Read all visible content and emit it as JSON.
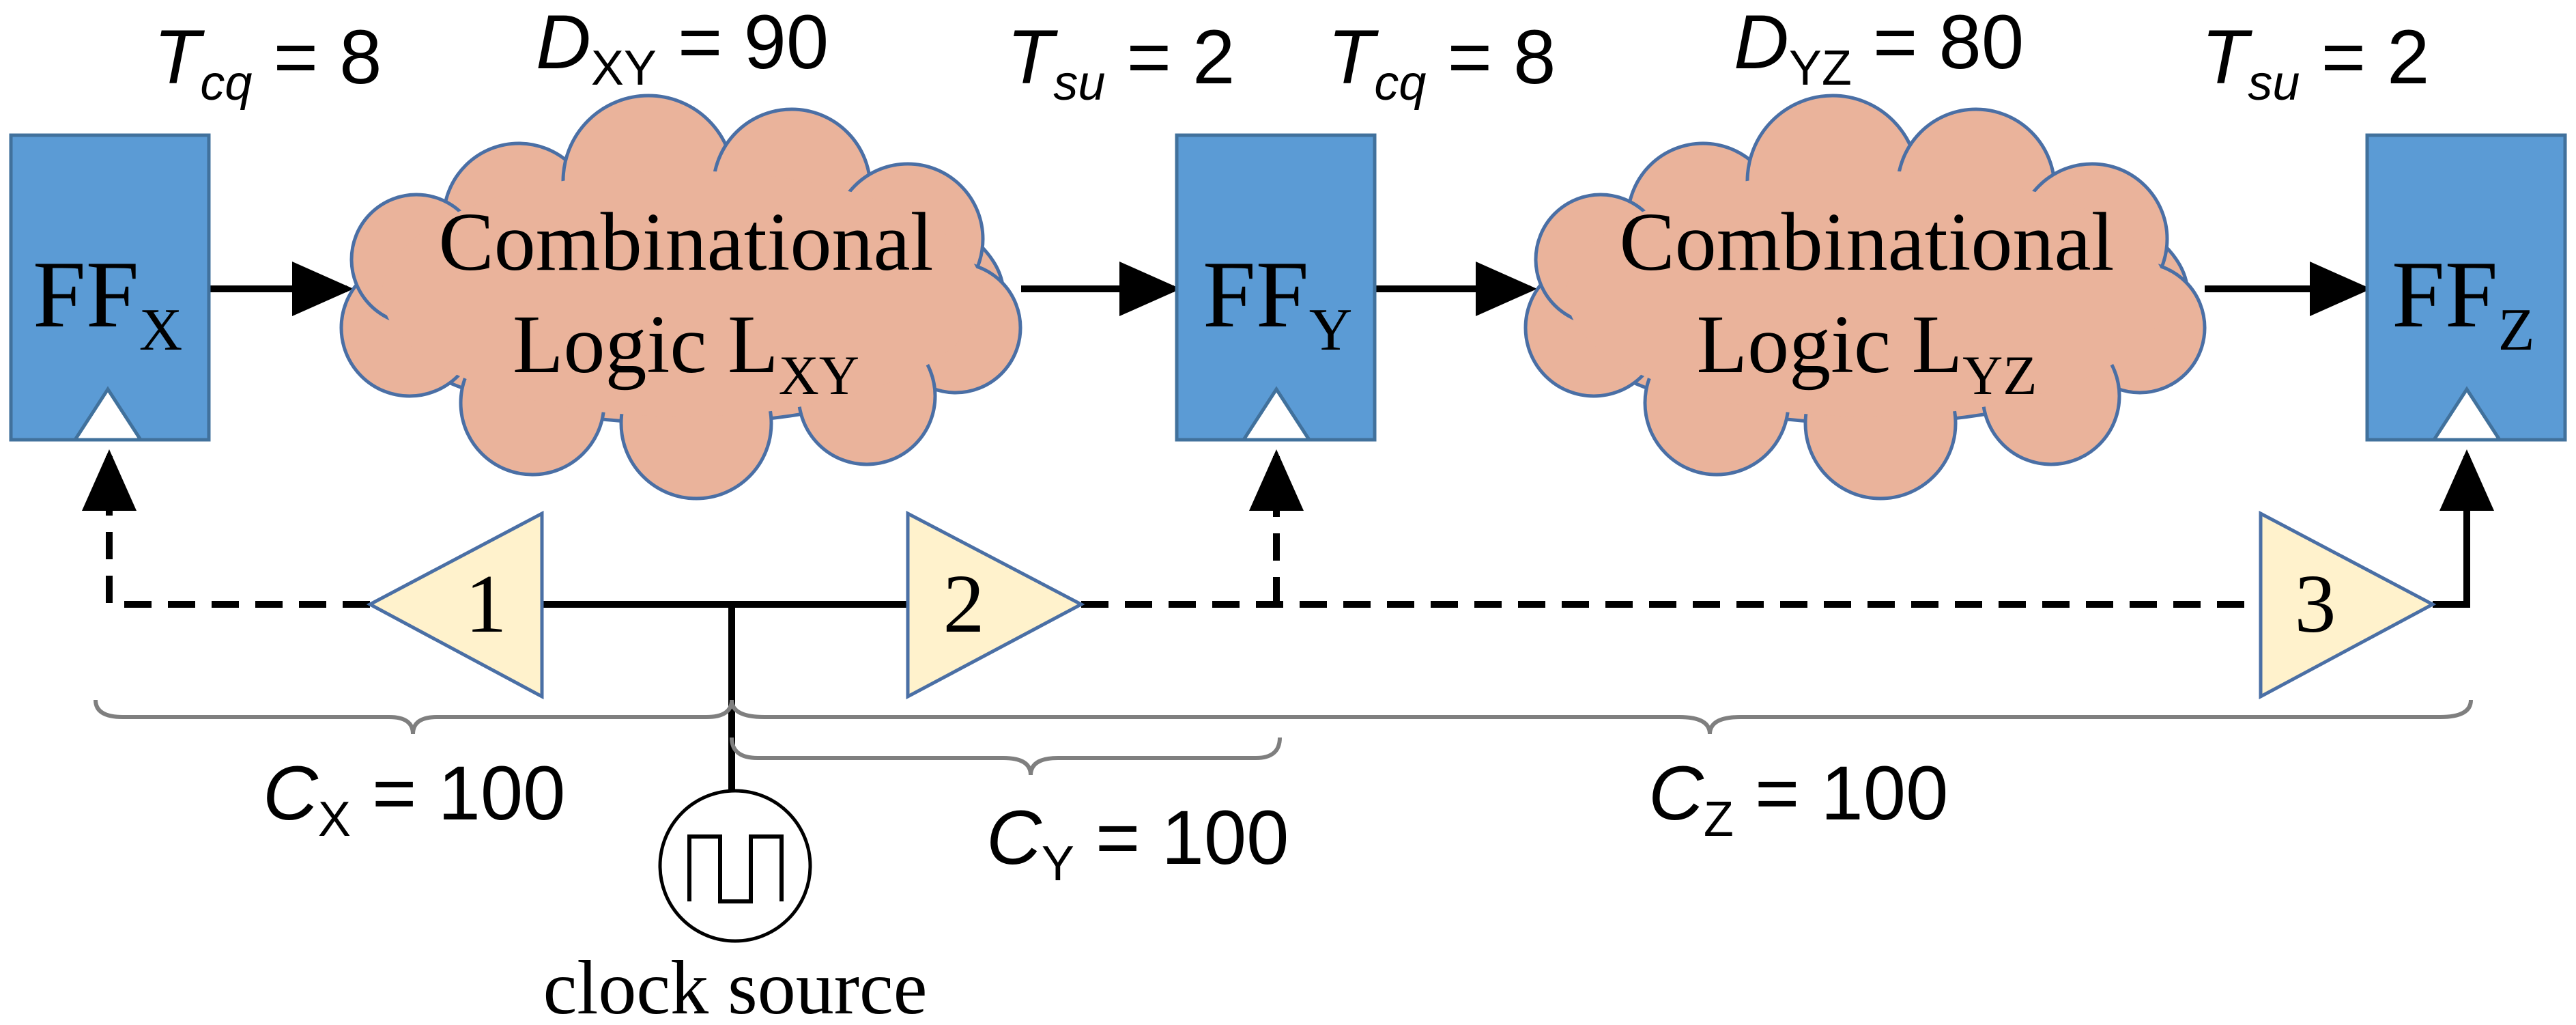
{
  "timing": {
    "tcq_x": {
      "sym": "T",
      "sub": "cq",
      "eq": " = 8"
    },
    "d_xy": {
      "sym": "D",
      "sub": "XY",
      "eq": " = 90"
    },
    "tsu_y": {
      "sym": "T",
      "sub": "su",
      "eq": " = 2"
    },
    "tcq_y": {
      "sym": "T",
      "sub": "cq",
      "eq": " = 8"
    },
    "d_yz": {
      "sym": "D",
      "sub": "YZ",
      "eq": " = 80"
    },
    "tsu_z": {
      "sym": "T",
      "sub": "su",
      "eq": " = 2"
    }
  },
  "flipflops": [
    {
      "base": "FF",
      "sub": "X"
    },
    {
      "base": "FF",
      "sub": "Y"
    },
    {
      "base": "FF",
      "sub": "Z"
    }
  ],
  "logic": [
    {
      "line1": "Combinational",
      "line2": "Logic L",
      "sub": "XY"
    },
    {
      "line1": "Combinational",
      "line2": "Logic L",
      "sub": "YZ"
    }
  ],
  "buffers": [
    "1",
    "2",
    "3"
  ],
  "clock_delays": {
    "cx": {
      "sym": "C",
      "sub": "X",
      "eq": " = 100"
    },
    "cy": {
      "sym": "C",
      "sub": "Y",
      "eq": " = 100"
    },
    "cz": {
      "sym": "C",
      "sub": "Z",
      "eq": " = 100"
    }
  },
  "clock_label": "clock source",
  "colors": {
    "flipflop_fill": "#5b9bd5",
    "flipflop_stroke": "#41719c",
    "cloud_fill": "#eab39b",
    "cloud_stroke": "#4a6fa5",
    "buffer_fill": "#fff2cc",
    "buffer_stroke": "#4a6fa5",
    "brace_stroke": "#7f7f7f"
  }
}
